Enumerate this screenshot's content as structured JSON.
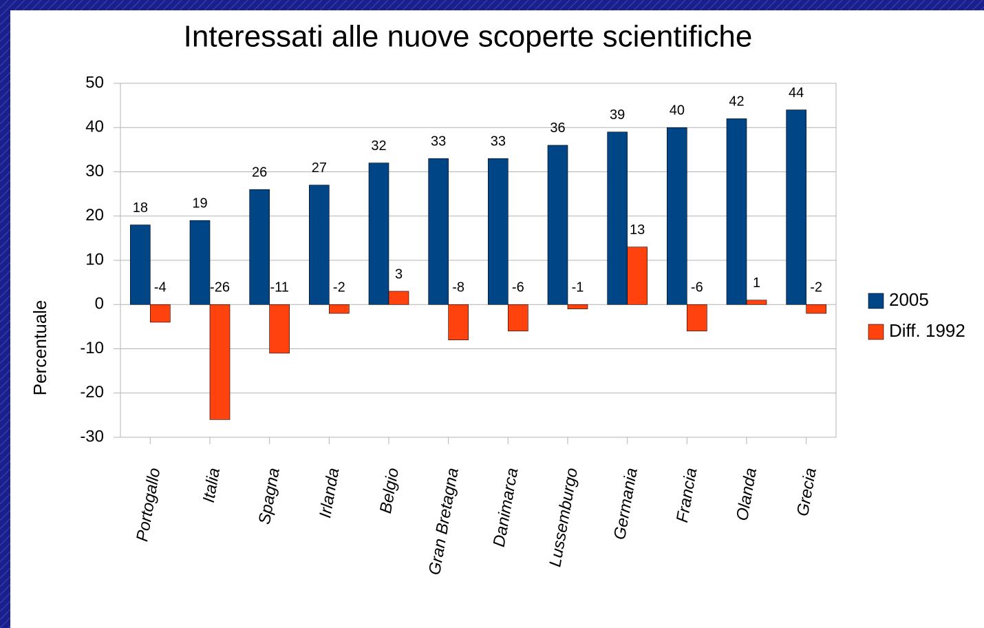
{
  "chart_data": {
    "type": "bar",
    "title": "Interessati alle nuove scoperte scientifiche",
    "y_label": "Percentuale",
    "categories": [
      "Portogallo",
      "Italia",
      "Spagna",
      "Irlanda",
      "Belgio",
      "Gran Bretagna",
      "Danimarca",
      "Lussemburgo",
      "Germania",
      "Francia",
      "Olanda",
      "Grecia"
    ],
    "series": [
      {
        "name": "2005",
        "color": "#004586",
        "values": [
          18,
          19,
          26,
          27,
          32,
          33,
          33,
          36,
          39,
          40,
          42,
          44
        ]
      },
      {
        "name": "Diff. 1992",
        "color": "#ff420e",
        "values": [
          -4,
          -26,
          -11,
          -2,
          3,
          -8,
          -6,
          -1,
          13,
          -6,
          1,
          -2
        ]
      }
    ],
    "ylim": [
      -30,
      50
    ],
    "yticks": [
      -30,
      -20,
      -10,
      0,
      10,
      20,
      30,
      40,
      50
    ],
    "grid": true,
    "legend": "right"
  }
}
